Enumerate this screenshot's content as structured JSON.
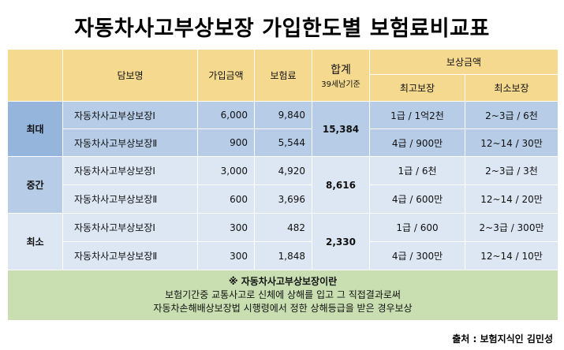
{
  "title": "자동차사고부상보장 가입한도별 보험료비교표",
  "header": {
    "coverage": "담보명",
    "amount": "가입금액",
    "premium": "보험료",
    "total": "합계",
    "total_note": "39세남기준",
    "benefit": "보상금액",
    "max_benefit": "최고보장",
    "min_benefit": "최소보장"
  },
  "groups": [
    {
      "label": "최대",
      "total": "15,384",
      "rows": [
        {
          "name": "자동차사고부상보장Ⅰ",
          "amount": "6,000",
          "premium": "9,840",
          "max": "1급 / 1억2천",
          "min": "2~3급 / 6천"
        },
        {
          "name": "자동차사고부상보장Ⅱ",
          "amount": "900",
          "premium": "5,544",
          "max": "4급 / 900만",
          "min": "12~14 / 30만"
        }
      ]
    },
    {
      "label": "중간",
      "total": "8,616",
      "rows": [
        {
          "name": "자동차사고부상보장Ⅰ",
          "amount": "3,000",
          "premium": "4,920",
          "max": "1급 / 6천",
          "min": "2~3급 / 3천"
        },
        {
          "name": "자동차사고부상보장Ⅱ",
          "amount": "600",
          "premium": "3,696",
          "max": "4급 / 600만",
          "min": "12~14 / 20만"
        }
      ]
    },
    {
      "label": "최소",
      "total": "2,330",
      "rows": [
        {
          "name": "자동차사고부상보장Ⅰ",
          "amount": "300",
          "premium": "482",
          "max": "1급 / 600",
          "min": "2~3급 / 300만"
        },
        {
          "name": "자동차사고부상보장Ⅱ",
          "amount": "300",
          "premium": "1,848",
          "max": "4급 / 300만",
          "min": "12~14 / 10만"
        }
      ]
    }
  ],
  "note": {
    "title": "※ 자동차사고부상보장이란",
    "line1": "보험기간중 교통사고로 신체에 상해를 입고 그 직접결과로써",
    "line2": "자동차손해배상보장법 시행령에서 정한 상해등급을 받은 경우보상"
  },
  "source": "출처 : 보험지식인 김민성",
  "colors": {
    "header_bg": "#f5d98e",
    "group_label_bg": "#95b5dd",
    "cell_bg": "#b7cde7",
    "cell_light_bg": "#dce7f3",
    "note_bg": "#c9dfb1"
  }
}
